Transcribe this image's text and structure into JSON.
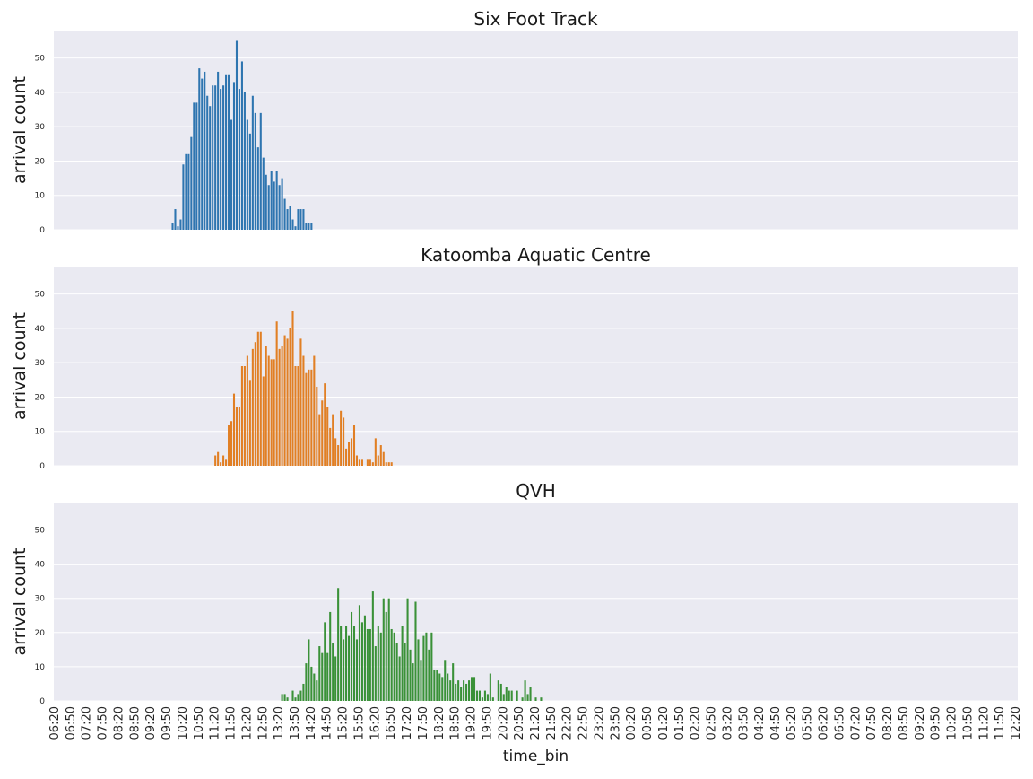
{
  "chart_data": {
    "type": "bar",
    "layout": "3 stacked panels, shared x-axis, shared y-scale",
    "xlabel": "time_bin",
    "ylim": [
      0,
      58
    ],
    "yticks": [
      0,
      10,
      20,
      30,
      40,
      50
    ],
    "grid": true,
    "xtick_labels": [
      "06:20",
      "06:50",
      "07:20",
      "07:50",
      "08:20",
      "08:50",
      "09:20",
      "09:50",
      "10:20",
      "10:50",
      "11:20",
      "11:50",
      "12:20",
      "12:50",
      "13:20",
      "13:50",
      "14:20",
      "14:50",
      "15:20",
      "15:50",
      "16:20",
      "16:50",
      "17:20",
      "17:50",
      "18:20",
      "18:50",
      "19:20",
      "19:50",
      "20:20",
      "20:50",
      "21:20",
      "21:50",
      "22:20",
      "22:50",
      "23:20",
      "23:50",
      "00:20",
      "00:50",
      "01:20",
      "01:50",
      "02:20",
      "02:50",
      "03:20",
      "03:50",
      "04:20",
      "04:50",
      "05:20",
      "05:50",
      "06:20",
      "06:50",
      "07:20",
      "07:50",
      "08:20",
      "08:50",
      "09:20",
      "09:50",
      "10:20",
      "10:50",
      "11:20",
      "11:50",
      "12:20"
    ],
    "bin_minutes": 5,
    "panels": [
      {
        "title": "Six Foot Track",
        "ylabel": "arrival count",
        "color": "#2e75b0",
        "start_time": "10:00",
        "values": [
          2,
          6,
          1,
          3,
          19,
          22,
          22,
          27,
          37,
          37,
          47,
          44,
          46,
          39,
          36,
          42,
          42,
          46,
          41,
          42,
          45,
          45,
          32,
          43,
          55,
          41,
          49,
          40,
          32,
          28,
          39,
          34,
          24,
          34,
          21,
          16,
          13,
          17,
          14,
          17,
          13,
          15,
          9,
          6,
          7,
          3,
          1,
          6,
          6,
          6,
          2,
          2,
          2
        ]
      },
      {
        "title": "Katoomba Aquatic Centre",
        "ylabel": "arrival count",
        "color": "#e17f24",
        "start_time": "11:20",
        "values": [
          3,
          4,
          1,
          3,
          2,
          12,
          13,
          21,
          17,
          17,
          29,
          29,
          32,
          25,
          34,
          36,
          39,
          39,
          26,
          35,
          32,
          31,
          31,
          42,
          34,
          35,
          38,
          37,
          40,
          45,
          29,
          29,
          37,
          32,
          27,
          28,
          28,
          32,
          23,
          15,
          19,
          24,
          17,
          11,
          15,
          8,
          6,
          16,
          14,
          5,
          7,
          8,
          12,
          3,
          2,
          2,
          0,
          2,
          2,
          1,
          8,
          3,
          6,
          4,
          1,
          1,
          1
        ]
      },
      {
        "title": "QVH",
        "ylabel": "arrival count",
        "color": "#3a9138",
        "start_time": "13:25",
        "values": [
          2,
          2,
          1,
          0,
          3,
          1,
          2,
          3,
          5,
          11,
          18,
          10,
          8,
          6,
          16,
          14,
          23,
          14,
          26,
          17,
          13,
          33,
          22,
          18,
          22,
          19,
          26,
          22,
          18,
          28,
          23,
          25,
          21,
          21,
          32,
          16,
          22,
          20,
          30,
          26,
          30,
          21,
          20,
          17,
          13,
          22,
          17,
          30,
          15,
          11,
          29,
          18,
          12,
          19,
          20,
          15,
          20,
          9,
          9,
          8,
          7,
          12,
          8,
          6,
          11,
          5,
          6,
          4,
          6,
          5,
          6,
          7,
          7,
          3,
          3,
          1,
          3,
          2,
          8,
          1,
          0,
          6,
          5,
          2,
          4,
          3,
          3,
          0,
          3,
          0,
          1,
          6,
          2,
          4,
          0,
          1,
          0,
          1
        ]
      }
    ]
  }
}
